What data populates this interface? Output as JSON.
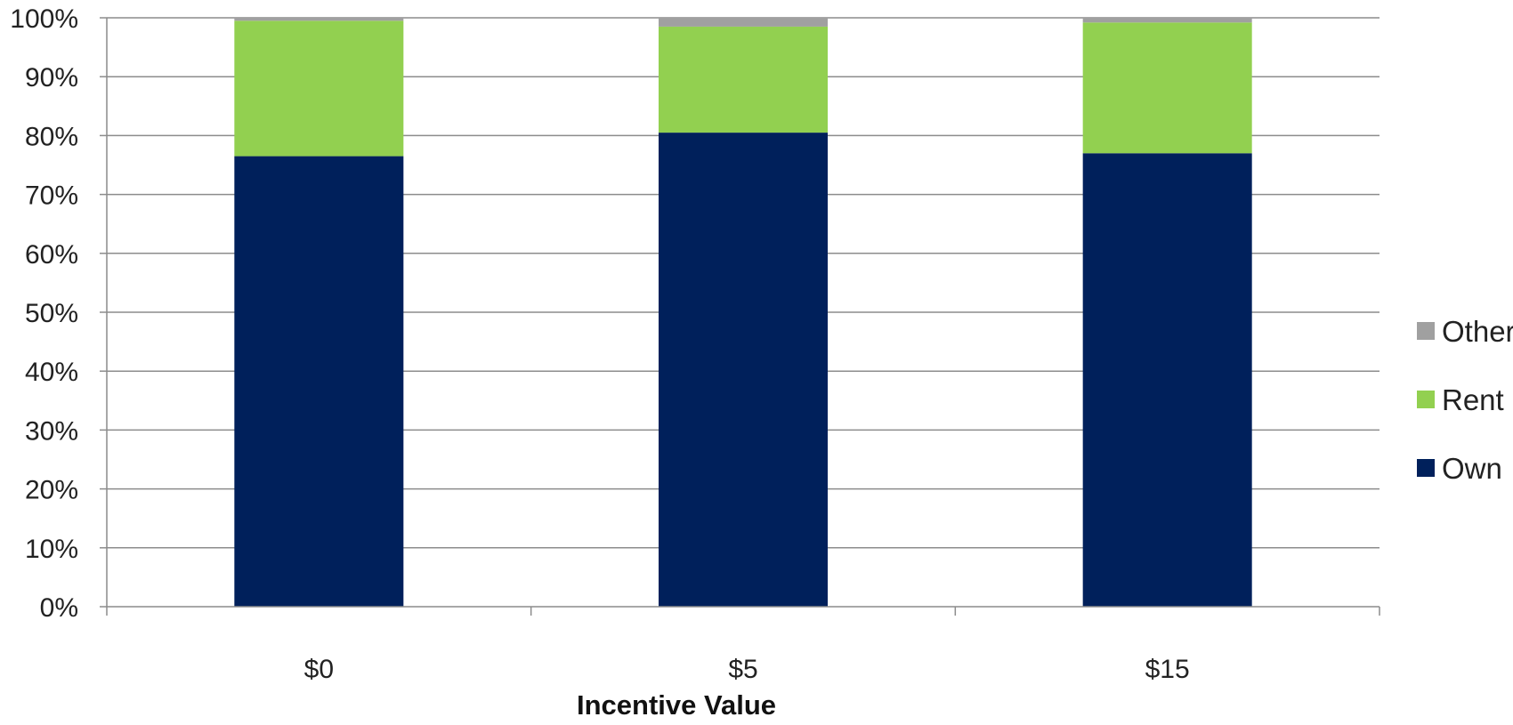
{
  "chart_data": {
    "type": "bar",
    "stacked": true,
    "categories": [
      "$0",
      "$5",
      "$15"
    ],
    "series": [
      {
        "name": "Own",
        "values": [
          76.5,
          80.5,
          77.0
        ],
        "color": "#00205b"
      },
      {
        "name": "Rent",
        "values": [
          23.0,
          18.0,
          22.2
        ],
        "color": "#92d050"
      },
      {
        "name": "Other",
        "values": [
          0.5,
          1.5,
          0.8
        ],
        "color": "#a0a0a0"
      }
    ],
    "title": "",
    "xlabel": "Incentive Value",
    "ylabel": "",
    "ylim": [
      0,
      100
    ],
    "yticks": [
      "0%",
      "10%",
      "20%",
      "30%",
      "40%",
      "50%",
      "60%",
      "70%",
      "80%",
      "90%",
      "100%"
    ],
    "grid": true,
    "legend": {
      "placement": "right",
      "entries": [
        "Other",
        "Rent",
        "Own"
      ]
    },
    "colors": {
      "gridline": "#8c8c8c",
      "axis": "#8c8c8c"
    }
  }
}
